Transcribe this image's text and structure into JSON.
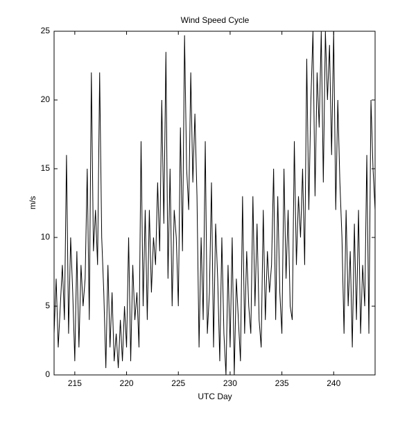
{
  "chart_data": {
    "type": "line",
    "title": "Wind Speed Cycle",
    "xlabel": "UTC Day",
    "ylabel": "m/s",
    "xlim": [
      213,
      244
    ],
    "ylim": [
      0,
      25
    ],
    "xticks": [
      215,
      220,
      225,
      230,
      235,
      240
    ],
    "yticks": [
      0,
      5,
      10,
      15,
      20,
      25
    ],
    "series": [
      {
        "color": "#000000",
        "x": [
          213,
          213.2,
          213.4,
          213.6,
          213.8,
          214,
          214.2,
          214.4,
          214.6,
          214.8,
          215,
          215.2,
          215.4,
          215.6,
          215.8,
          216,
          216.2,
          216.4,
          216.6,
          216.8,
          217,
          217.2,
          217.4,
          217.6,
          217.8,
          218,
          218.2,
          218.4,
          218.6,
          218.8,
          219,
          219.2,
          219.4,
          219.6,
          219.8,
          220,
          220.2,
          220.4,
          220.6,
          220.8,
          221,
          221.2,
          221.4,
          221.6,
          221.8,
          222,
          222.2,
          222.4,
          222.6,
          222.8,
          223,
          223.2,
          223.4,
          223.6,
          223.8,
          224,
          224.2,
          224.4,
          224.6,
          224.8,
          225,
          225.2,
          225.4,
          225.6,
          225.8,
          226,
          226.2,
          226.4,
          226.6,
          226.8,
          227,
          227.2,
          227.4,
          227.6,
          227.8,
          228,
          228.2,
          228.4,
          228.6,
          228.8,
          229,
          229.2,
          229.4,
          229.6,
          229.8,
          230,
          230.2,
          230.4,
          230.6,
          230.8,
          231,
          231.2,
          231.4,
          231.6,
          231.8,
          232,
          232.2,
          232.4,
          232.6,
          232.8,
          233,
          233.2,
          233.4,
          233.6,
          233.8,
          234,
          234.2,
          234.4,
          234.6,
          234.8,
          235,
          235.2,
          235.4,
          235.6,
          235.8,
          236,
          236.2,
          236.4,
          236.6,
          236.8,
          237,
          237.2,
          237.4,
          237.6,
          237.8,
          238,
          238.2,
          238.4,
          238.6,
          238.8,
          239,
          239.2,
          239.4,
          239.6,
          239.8,
          240,
          240.2,
          240.4,
          240.6,
          240.8,
          241,
          241.2,
          241.4,
          241.6,
          241.8,
          242,
          242.2,
          242.4,
          242.6,
          242.8,
          243,
          243.2,
          243.4,
          243.6,
          243.8,
          244
        ],
        "values": [
          3,
          7,
          2,
          5,
          8,
          4,
          16,
          3,
          10,
          6,
          1,
          9,
          2,
          8,
          5,
          7,
          15,
          4,
          22,
          9,
          12,
          8,
          22,
          10,
          6,
          0.5,
          8,
          2,
          6,
          1,
          3,
          0.5,
          4,
          1,
          5,
          2,
          10,
          1,
          8,
          4,
          6,
          2,
          17,
          5,
          12,
          4,
          12,
          6,
          10,
          8,
          14,
          9,
          20,
          11,
          23.5,
          7,
          15,
          5,
          12,
          10,
          5,
          18,
          9,
          24.7,
          15,
          12,
          22,
          14,
          19,
          13,
          2,
          10,
          4,
          17,
          3,
          6,
          14,
          2,
          11,
          7,
          1,
          10,
          3,
          0,
          8,
          2,
          10,
          0,
          7,
          4,
          1,
          13,
          3,
          9,
          5,
          3,
          13,
          5,
          11,
          4,
          2,
          12,
          4,
          9,
          6,
          8,
          15,
          4,
          13,
          6,
          3,
          15,
          7,
          12,
          5,
          4,
          17,
          8,
          13,
          10,
          15,
          8,
          23,
          12,
          20,
          25,
          13,
          22,
          18,
          25,
          14,
          25,
          20,
          24,
          16,
          25,
          12,
          20,
          14,
          10,
          3,
          12,
          5,
          9,
          2,
          11,
          4,
          12,
          3,
          8,
          5,
          16,
          3,
          20,
          15,
          12
        ]
      }
    ]
  }
}
